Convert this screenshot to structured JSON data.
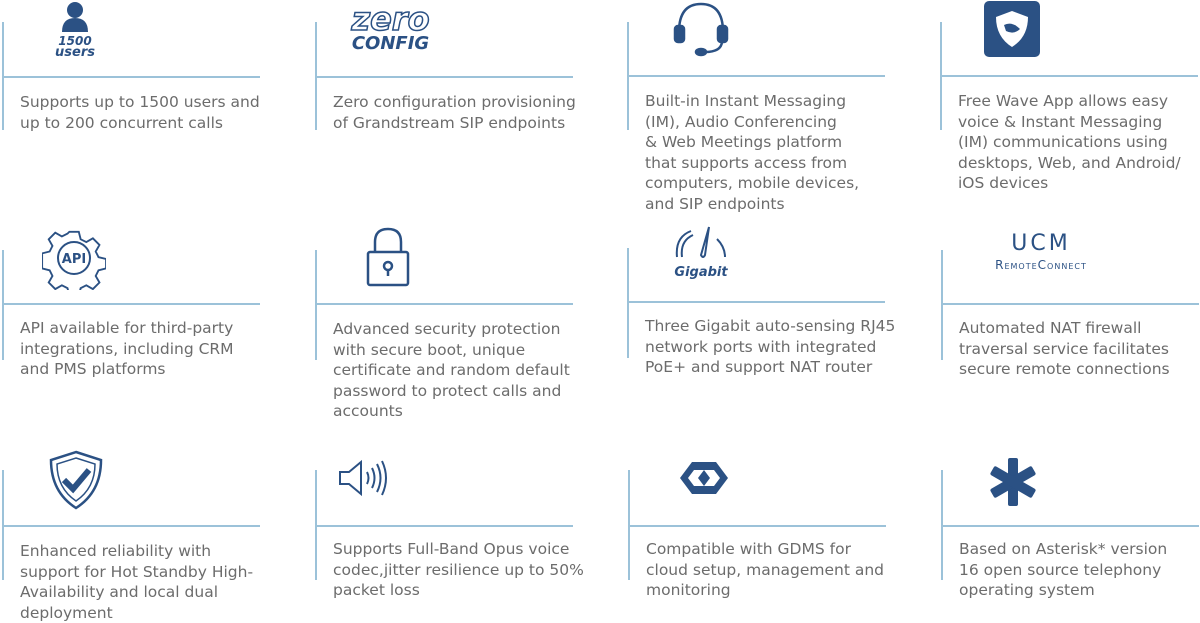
{
  "accent_color": "#2b5184",
  "line_color": "#9cc2d9",
  "features": [
    {
      "icon": "user-icon",
      "icon_text": [
        "1500",
        "users"
      ],
      "lines": [
        "Supports up to 1500 users and",
        "up to 200 concurrent calls"
      ]
    },
    {
      "icon": "zero-config-logo",
      "icon_text": [
        "zero",
        "CONFIG"
      ],
      "lines": [
        "Zero configuration provisioning",
        "of Grandstream SIP endpoints"
      ]
    },
    {
      "icon": "headset-icon",
      "lines": [
        "Built-in Instant Messaging",
        "(IM), Audio Conferencing",
        "& Web Meetings platform",
        "that supports access from",
        "computers, mobile devices,",
        "and SIP endpoints"
      ]
    },
    {
      "icon": "wave-app-icon",
      "lines": [
        "Free Wave App allows easy",
        "voice & Instant Messaging",
        "(IM) communications using",
        "desktops, Web, and Android/",
        "iOS devices"
      ]
    },
    {
      "icon": "api-gear-icon",
      "icon_text": [
        "API"
      ],
      "lines": [
        "API available for third-party",
        "integrations, including CRM",
        "and PMS platforms"
      ]
    },
    {
      "icon": "padlock-icon",
      "lines": [
        "Advanced security protection",
        "with secure boot, unique",
        "certificate and random default",
        "password to protect calls and",
        "accounts"
      ]
    },
    {
      "icon": "gigabit-gauge-icon",
      "icon_text": [
        "Gigabit"
      ],
      "lines": [
        "Three Gigabit auto-sensing RJ45",
        "network ports with integrated",
        "PoE+ and support NAT router"
      ]
    },
    {
      "icon": "ucm-remoteconnect-logo",
      "icon_text": [
        "UCM",
        "RemoteConnect"
      ],
      "lines": [
        "Automated NAT firewall",
        "traversal service facilitates",
        "secure remote connections"
      ]
    },
    {
      "icon": "shield-check-icon",
      "lines": [
        "Enhanced reliability with",
        "support for Hot Standby High-",
        "Availability and local dual",
        "deployment"
      ]
    },
    {
      "icon": "speaker-icon",
      "lines": [
        "Supports Full-Band Opus voice",
        "codec,jitter resilience up to 50%",
        "packet loss"
      ]
    },
    {
      "icon": "gdms-cloud-icon",
      "lines": [
        "Compatible with GDMS for",
        "cloud setup, management and",
        "monitoring"
      ]
    },
    {
      "icon": "asterisk-icon",
      "lines": [
        "Based on Asterisk* version",
        "16 open source telephony",
        "operating system"
      ]
    }
  ]
}
